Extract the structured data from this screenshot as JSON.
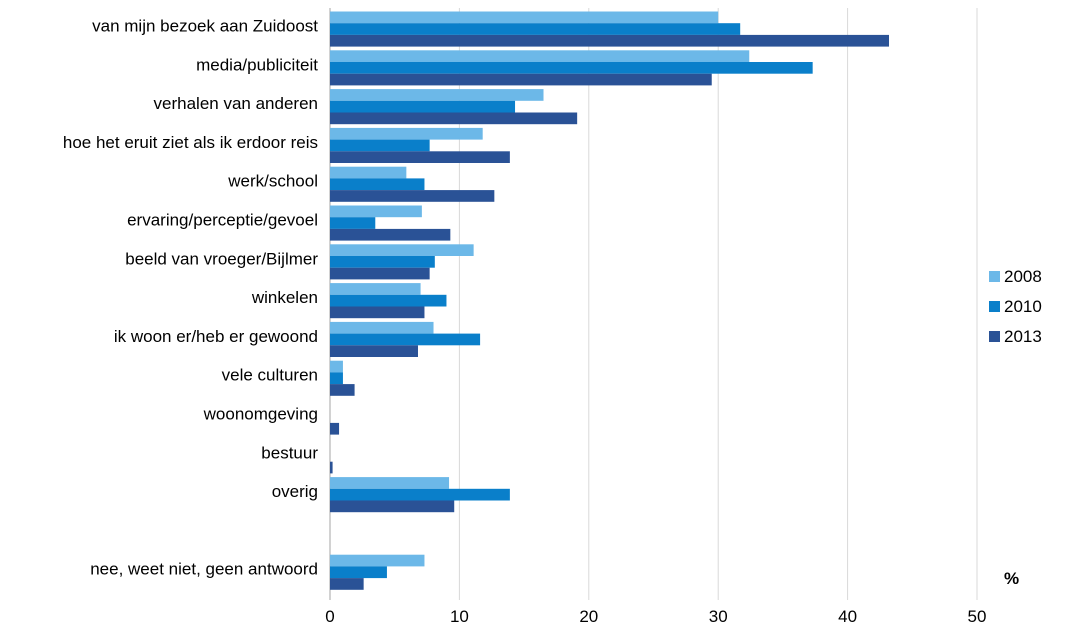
{
  "chart_data": {
    "type": "bar",
    "orientation": "horizontal",
    "categories": [
      "van mijn bezoek aan Zuidoost",
      "media/publiciteit",
      "verhalen van anderen",
      "hoe het eruit ziet als ik erdoor reis",
      "werk/school",
      "ervaring/perceptie/gevoel",
      "beeld van vroeger/Bijlmer",
      "winkelen",
      "ik woon er/heb er gewoond",
      "vele culturen",
      "woonomgeving",
      "bestuur",
      "overig",
      "",
      "nee, weet niet, geen antwoord"
    ],
    "series": [
      {
        "name": "2008",
        "color": "#6cb8e8",
        "values": [
          30.0,
          32.4,
          16.5,
          11.8,
          5.9,
          7.1,
          11.1,
          7.0,
          8.0,
          1.0,
          0,
          0,
          9.2,
          null,
          7.3
        ]
      },
      {
        "name": "2010",
        "color": "#0a7fca",
        "values": [
          31.7,
          37.3,
          14.3,
          7.7,
          7.3,
          3.5,
          8.1,
          9.0,
          11.6,
          1.0,
          0,
          0,
          13.9,
          null,
          4.4
        ]
      },
      {
        "name": "2013",
        "color": "#2a5296",
        "values": [
          43.2,
          29.5,
          19.1,
          13.9,
          12.7,
          9.3,
          7.7,
          7.3,
          6.8,
          1.9,
          0.7,
          0.2,
          9.6,
          null,
          2.6
        ]
      }
    ],
    "xlim": [
      0,
      50
    ],
    "xticks": [
      "0",
      "10",
      "20",
      "30",
      "40",
      "50"
    ],
    "xunit": "%",
    "grid": "vertical",
    "legend_position": "right"
  }
}
